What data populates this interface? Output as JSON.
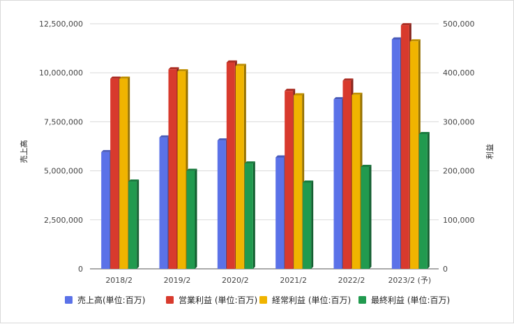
{
  "chart_data": {
    "type": "bar",
    "categories": [
      "2018/2",
      "2019/2",
      "2020/2",
      "2021/2",
      "2022/2",
      "2023/2 (予)"
    ],
    "ylabel_left": "売上高",
    "ylabel_right": "利益",
    "ylim_left": [
      0,
      12500000
    ],
    "ylim_right": [
      0,
      500000
    ],
    "yticks_left": [
      "0",
      "2,500,000",
      "5,000,000",
      "7,500,000",
      "10,000,000",
      "12,500,000"
    ],
    "yticks_right": [
      "0",
      "100,000",
      "200,000",
      "300,000",
      "400,000",
      "500,000"
    ],
    "grid": true,
    "legend_position": "bottom",
    "series": [
      {
        "name": "売上高(単位:百万)",
        "axis": "left",
        "color": "#5b72e8",
        "values": [
          5950000,
          6700000,
          6550000,
          5680000,
          8650000,
          11700000
        ]
      },
      {
        "name": "営業利益 (単位:百万)",
        "axis": "right",
        "color": "#d83a2d",
        "values": [
          388000,
          407000,
          421000,
          363000,
          384000,
          497000
        ]
      },
      {
        "name": "経常利益 (単位:百万)",
        "axis": "right",
        "color": "#f0b400",
        "values": [
          388000,
          403000,
          414000,
          354000,
          355000,
          464000
        ]
      },
      {
        "name": "最終利益 (単位:百万)",
        "axis": "right",
        "color": "#219a4f",
        "values": [
          178000,
          200000,
          215000,
          176000,
          208000,
          275000
        ]
      }
    ]
  }
}
